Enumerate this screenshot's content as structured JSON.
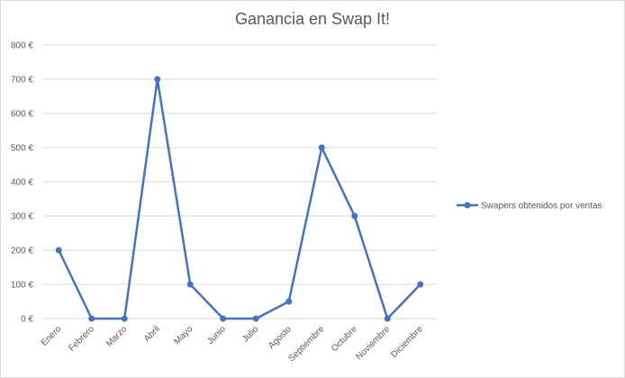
{
  "chart_data": {
    "type": "line",
    "title": "Ganancia en Swap It!",
    "categories": [
      "Enero",
      "Febrero",
      "Marzo",
      "Abril",
      "Mayo",
      "Junio",
      "Julio",
      "Agosto",
      "Septiembre",
      "Octubre",
      "Noviembre",
      "Diciembre"
    ],
    "series": [
      {
        "name": "Swapers obtenidos por ventas",
        "values": [
          200,
          0,
          0,
          700,
          100,
          0,
          0,
          50,
          500,
          300,
          0,
          100
        ],
        "color": "#4472c4",
        "marker": "circle"
      }
    ],
    "y_ticks": [
      "0 €",
      "100 €",
      "200 €",
      "300 €",
      "400 €",
      "500 €",
      "600 €",
      "700 €",
      "800 €"
    ],
    "ylim": [
      0,
      800
    ],
    "ystep": 100,
    "xlabel": "",
    "ylabel": "",
    "grid": true,
    "legend_position": "right",
    "gridline_color": "#d9d9d9",
    "text_color": "#595959"
  }
}
